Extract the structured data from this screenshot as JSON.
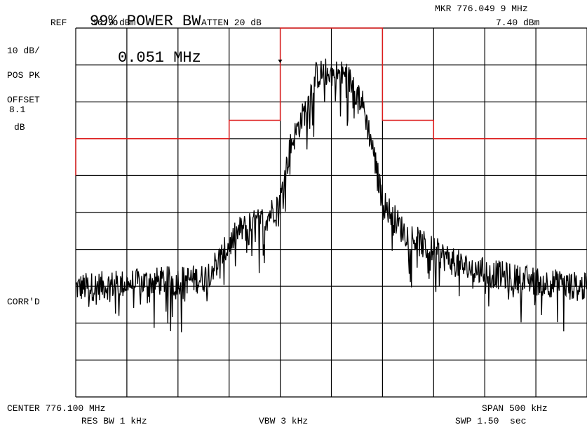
{
  "header": {
    "ref_label": "REF",
    "ref_value": "16.9 dBm",
    "atten": "ATTEN 20 dB",
    "marker_freq": "MKR 776.049 9 MHz",
    "marker_level": "7.40 dBm"
  },
  "measurement": {
    "title": "99% POWER BW",
    "value": "0.051 MHz"
  },
  "left_panel": {
    "scale": "10 dB/",
    "detector": "POS PK",
    "offset_label": "OFFSET",
    "offset_value": "8.1",
    "offset_unit": "dB",
    "corrected": "CORR'D"
  },
  "footer": {
    "center": "CENTER 776.100 MHz",
    "span": "SPAN 500 kHz",
    "res_bw": "RES BW 1 kHz",
    "vbw": "VBW 3 kHz",
    "sweep": "SWP 1.50  sec"
  },
  "colors": {
    "grid": "#000000",
    "trace": "#000000",
    "limit_line": "#dd1c1c"
  },
  "chart_data": {
    "type": "line",
    "x_unit": "MHz",
    "x_range": [
      775.85,
      776.35
    ],
    "y_unit": "dBm",
    "y_range": [
      -83.1,
      16.9
    ],
    "reference_level": 16.9,
    "divisions": {
      "x": 10,
      "y": 10
    },
    "scale_db_per_div": 10,
    "limit_mask": [
      {
        "x": [
          775.85,
          776.0
        ],
        "y": -13.1
      },
      {
        "x": [
          776.0,
          776.05
        ],
        "y": -8.1
      },
      {
        "x": [
          776.05,
          776.15
        ],
        "y": 16.9
      },
      {
        "x": [
          776.15,
          776.2
        ],
        "y": -8.1
      },
      {
        "x": [
          776.2,
          776.35
        ],
        "y": -13.1
      }
    ],
    "envelope": {
      "x": [
        775.85,
        775.92,
        775.975,
        775.99,
        776.01,
        776.035,
        776.05,
        776.06,
        776.075,
        776.085,
        776.095,
        776.105,
        776.115,
        776.13,
        776.14,
        776.15,
        776.17,
        776.19,
        776.23,
        776.28,
        776.35
      ],
      "y": [
        -53.5,
        -52.0,
        -51.0,
        -46.0,
        -38.0,
        -35.0,
        -30.0,
        -15.0,
        -5.0,
        4.0,
        5.0,
        4.5,
        4.0,
        -3.0,
        -15.0,
        -30.0,
        -38.0,
        -42.0,
        -48.0,
        -51.0,
        -53.5
      ]
    },
    "marker": {
      "x": 776.0499,
      "y": 7.4
    }
  }
}
